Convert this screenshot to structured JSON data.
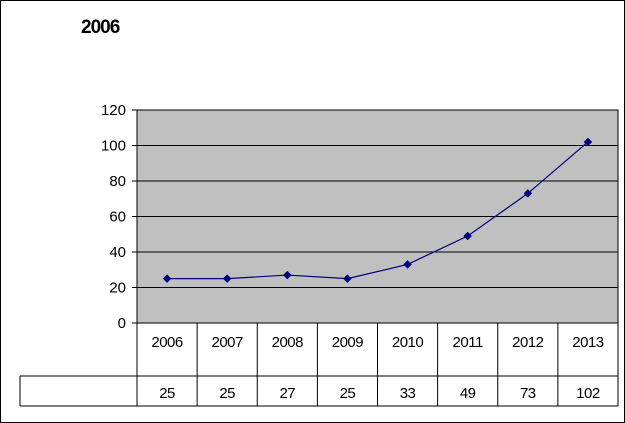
{
  "chart_data": {
    "type": "line",
    "title": "2006",
    "categories": [
      "2006",
      "2007",
      "2008",
      "2009",
      "2010",
      "2011",
      "2012",
      "2013"
    ],
    "series": [
      {
        "values": [
          25,
          25,
          27,
          25,
          33,
          49,
          73,
          102
        ]
      }
    ],
    "ylim": [
      0,
      120
    ],
    "yticks": [
      0,
      20,
      40,
      60,
      80,
      100,
      120
    ],
    "grid": true,
    "data_table": true,
    "colors": {
      "plot_background": "#c0c0c0",
      "line": "#000080",
      "marker": "#000080",
      "gridline": "#000000"
    }
  }
}
